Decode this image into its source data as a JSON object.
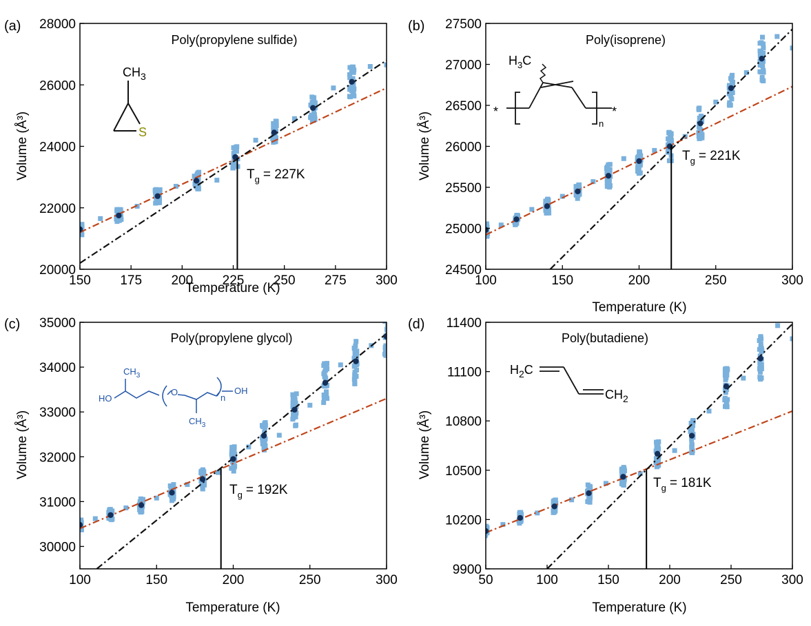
{
  "chart_data": [
    {
      "type": "scatter",
      "panel_label": "(a)",
      "title": "Poly(propylene sulfide)",
      "xlabel": "Temperature (K)",
      "ylabel": "Volume (Å³)",
      "xlim": [
        150,
        300
      ],
      "ylim": [
        20000,
        28000
      ],
      "xticks": [
        150,
        175,
        200,
        225,
        250,
        275,
        300
      ],
      "yticks": [
        20000,
        22000,
        24000,
        26000,
        28000
      ],
      "tg_label": "= 227K",
      "tg_value": 227,
      "fit_lines": [
        {
          "name": "glassy fit",
          "color": "#c0461b",
          "points": [
            [
              150,
              21200
            ],
            [
              300,
              25900
            ]
          ]
        },
        {
          "name": "rubbery fit",
          "color": "#111111",
          "points": [
            [
              150,
              20200
            ],
            [
              300,
              26800
            ]
          ]
        }
      ],
      "mean_points": {
        "x": [
          150,
          169,
          188,
          207,
          226,
          245,
          264,
          283
        ],
        "y": [
          21300,
          21750,
          22380,
          22880,
          23650,
          24450,
          25250,
          26100
        ]
      },
      "spread": [
        200,
        230,
        230,
        280,
        360,
        380,
        420,
        520
      ],
      "isolated_points": {
        "x": [
          160,
          178,
          197,
          217,
          236,
          255,
          274,
          292,
          300
        ],
        "y": [
          21650,
          22050,
          22700,
          22900,
          24200,
          24900,
          25900,
          26600,
          26650
        ]
      },
      "structure": {
        "labels": [
          "CH",
          "3",
          "S"
        ],
        "colors": {
          "bond": "#111111",
          "S": "#8c8a00"
        }
      }
    },
    {
      "type": "scatter",
      "panel_label": "(b)",
      "title": "Poly(isoprene)",
      "xlabel": "Temperature (K)",
      "ylabel": "Volume (Å³)",
      "xlim": [
        100,
        300
      ],
      "ylim": [
        24500,
        27500
      ],
      "xticks": [
        100,
        150,
        200,
        250,
        300
      ],
      "yticks": [
        24500,
        25000,
        25500,
        26000,
        26500,
        27000,
        27500
      ],
      "tg_label": "= 221K",
      "tg_value": 221,
      "fit_lines": [
        {
          "name": "glassy fit",
          "color": "#c0461b",
          "points": [
            [
              100,
              24920
            ],
            [
              300,
              26730
            ]
          ]
        },
        {
          "name": "rubbery fit",
          "color": "#111111",
          "points": [
            [
              142,
              24500
            ],
            [
              300,
              27430
            ]
          ]
        }
      ],
      "mean_points": {
        "x": [
          100,
          120,
          140,
          160,
          180,
          200,
          220,
          240,
          260,
          280
        ],
        "y": [
          24980,
          25110,
          25270,
          25450,
          25640,
          25820,
          26000,
          26280,
          26710,
          27070
        ]
      },
      "spread": [
        80,
        70,
        90,
        90,
        140,
        150,
        180,
        200,
        220,
        280
      ],
      "isolated_points": {
        "x": [
          110,
          130,
          150,
          170,
          190,
          210,
          230,
          250,
          270,
          290,
          300
        ],
        "y": [
          25040,
          25230,
          25390,
          25570,
          25850,
          25950,
          26120,
          26540,
          26900,
          27340,
          27200
        ]
      },
      "structure": {
        "labels": [
          "H",
          "3",
          "C",
          "n",
          "*",
          "*"
        ],
        "colors": {
          "bond": "#111111"
        }
      }
    },
    {
      "type": "scatter",
      "panel_label": "(c)",
      "title": "Poly(propylene glycol)",
      "xlabel": "Temperature (K)",
      "ylabel": "Volume (Å³)",
      "xlim": [
        100,
        300
      ],
      "ylim": [
        29500,
        35000
      ],
      "xticks": [
        100,
        150,
        200,
        250,
        300
      ],
      "yticks": [
        30000,
        31000,
        32000,
        33000,
        34000,
        35000
      ],
      "tg_label": "= 192K",
      "tg_value": 192,
      "fit_lines": [
        {
          "name": "glassy fit",
          "color": "#c0461b",
          "points": [
            [
              100,
              30400
            ],
            [
              300,
              33300
            ]
          ]
        },
        {
          "name": "rubbery fit",
          "color": "#111111",
          "points": [
            [
              111,
              29500
            ],
            [
              300,
              34750
            ]
          ]
        }
      ],
      "mean_points": {
        "x": [
          100,
          120,
          140,
          160,
          180,
          200,
          220,
          240,
          260,
          280,
          300
        ],
        "y": [
          30480,
          30700,
          30920,
          31200,
          31500,
          31950,
          32470,
          33050,
          33650,
          34130,
          34680
        ]
      },
      "spread": [
        120,
        130,
        160,
        190,
        220,
        280,
        320,
        360,
        450,
        520,
        500
      ],
      "isolated_points": {
        "x": [
          110,
          130,
          150,
          170,
          190,
          210,
          230,
          250,
          270,
          290
        ],
        "y": [
          30620,
          30860,
          31080,
          31380,
          31650,
          32220,
          32480,
          33150,
          34050,
          34480
        ]
      },
      "structure": {
        "labels": [
          "CH",
          "3",
          "HO",
          "O",
          "n",
          "OH",
          "CH",
          "3"
        ],
        "colors": {
          "bond": "#2054a8"
        }
      }
    },
    {
      "type": "scatter",
      "panel_label": "(d)",
      "title": "Poly(butadiene)",
      "xlabel": "Temperature (K)",
      "ylabel": "Volume (Å³)",
      "xlim": [
        50,
        300
      ],
      "ylim": [
        9900,
        11400
      ],
      "xticks": [
        50,
        100,
        150,
        200,
        250,
        300
      ],
      "yticks": [
        9900,
        10200,
        10500,
        10800,
        11100,
        11400
      ],
      "tg_label": "= 181K",
      "tg_value": 181,
      "fit_lines": [
        {
          "name": "glassy fit",
          "color": "#c0461b",
          "points": [
            [
              50,
              10120
            ],
            [
              300,
              10860
            ]
          ]
        },
        {
          "name": "rubbery fit",
          "color": "#111111",
          "points": [
            [
              100,
              9900
            ],
            [
              300,
              11390
            ]
          ]
        }
      ],
      "mean_points": {
        "x": [
          50,
          78,
          106,
          134,
          162,
          190,
          218,
          246,
          274
        ],
        "y": [
          10130,
          10210,
          10280,
          10360,
          10460,
          10600,
          10710,
          11010,
          11180
        ]
      },
      "spread": [
        30,
        35,
        45,
        55,
        60,
        80,
        110,
        130,
        140
      ],
      "isolated_points": {
        "x": [
          64,
          92,
          120,
          148,
          176,
          204,
          232,
          260,
          288,
          300
        ],
        "y": [
          10170,
          10240,
          10320,
          10420,
          10480,
          10620,
          10860,
          11060,
          11380,
          11300
        ]
      },
      "structure": {
        "labels": [
          "H",
          "2",
          "C",
          "CH",
          "2"
        ],
        "colors": {
          "bond": "#111111"
        }
      }
    }
  ],
  "tg_symbol": "T",
  "tg_subscript": "g",
  "colors": {
    "scatter": "#7ab0dc",
    "mean": "#14305a",
    "tg_line": "#000000"
  }
}
